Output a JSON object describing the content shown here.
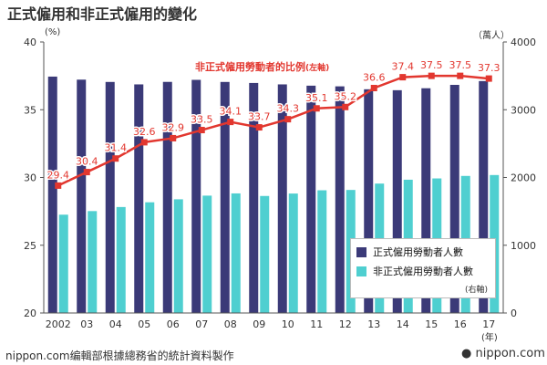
{
  "title": "正式僱用和非正式僱用的變化",
  "left_axis_unit": "(%)",
  "right_axis_unit": "（萬人）",
  "x_axis_unit": "(年)",
  "source": "nippon.com编輯部根據總務省的統計資料製作",
  "brand": "nippon.com",
  "colors": {
    "regular_bar": "#3b3a78",
    "nonregular_bar": "#4fcfd0",
    "ratio_line": "#e2372f"
  },
  "chart_data": {
    "type": "bar",
    "categories": [
      "2002",
      "03",
      "04",
      "05",
      "06",
      "07",
      "08",
      "09",
      "10",
      "11",
      "12",
      "13",
      "14",
      "15",
      "16",
      "17"
    ],
    "left_axis": {
      "ylim": [
        20,
        40
      ],
      "ticks": [
        20,
        25,
        30,
        35,
        40
      ]
    },
    "right_axis": {
      "ylim": [
        0,
        4000
      ],
      "ticks": [
        0,
        1000,
        2000,
        3000,
        4000
      ]
    },
    "series": [
      {
        "name": "正式僱用勞動者人數",
        "axis": "right",
        "kind": "bar",
        "values": [
          3489,
          3444,
          3410,
          3374,
          3411,
          3441,
          3410,
          3395,
          3374,
          3355,
          3345,
          3302,
          3288,
          3317,
          3367,
          3423
        ]
      },
      {
        "name": "非正式僱用勞動者人數",
        "axis": "right",
        "kind": "bar",
        "values": [
          1451,
          1504,
          1564,
          1634,
          1678,
          1732,
          1765,
          1727,
          1763,
          1811,
          1816,
          1910,
          1967,
          1986,
          2023,
          2036
        ]
      },
      {
        "name": "非正式僱用勞動者的比例",
        "axis": "left",
        "kind": "line",
        "values": [
          29.4,
          30.4,
          31.4,
          32.6,
          32.9,
          33.5,
          34.1,
          33.7,
          34.3,
          35.1,
          35.2,
          36.6,
          37.4,
          37.5,
          37.5,
          37.3
        ]
      }
    ],
    "line_label": "非正式僱用勞動者的比例",
    "line_label_axis_note": "(左軸)",
    "legend_note": "(右軸)",
    "legend_position": "bottom-right",
    "grid": false
  }
}
